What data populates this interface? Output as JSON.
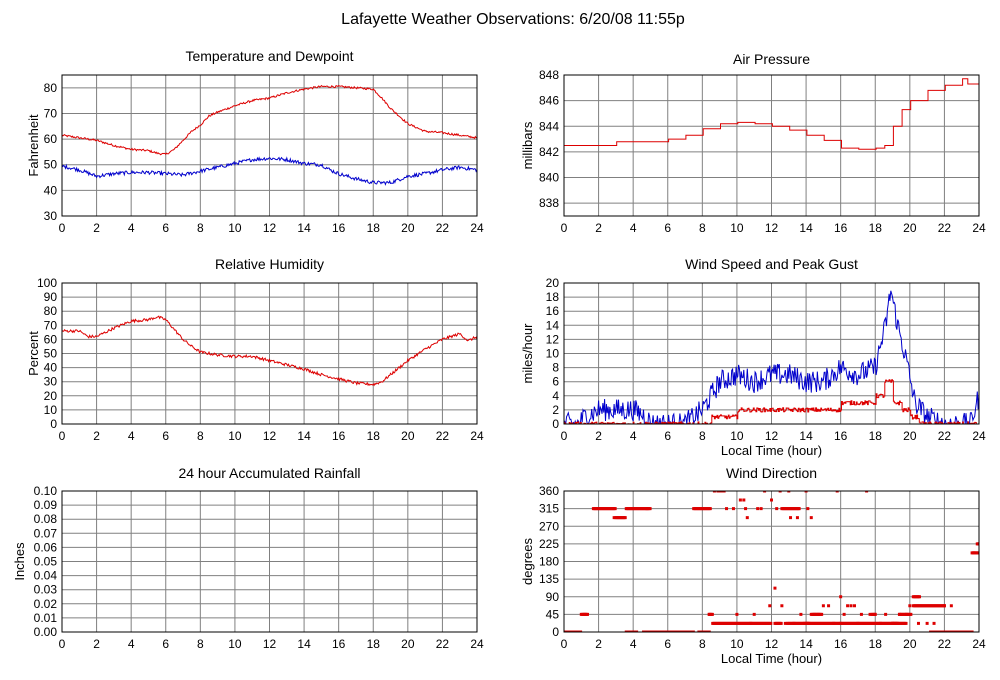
{
  "page": {
    "title": "Lafayette Weather Observations: 6/20/08 11:55p"
  },
  "colors": {
    "red": "#dd0000",
    "blue": "#0000cc",
    "grid": "#808080"
  },
  "chart_data": [
    {
      "id": "temp",
      "type": "line",
      "title": "Temperature and Dewpoint",
      "xlabel": "",
      "ylabel": "Fahrenheit",
      "xlim": [
        0,
        24
      ],
      "ylim": [
        30,
        85
      ],
      "xticks": [
        0,
        2,
        4,
        6,
        8,
        10,
        12,
        14,
        16,
        18,
        20,
        22,
        24
      ],
      "yticks": [
        30,
        40,
        50,
        60,
        70,
        80
      ],
      "grid": true,
      "series": [
        {
          "color": "red",
          "noise": 0.4,
          "x": [
            0,
            1,
            2,
            3,
            4,
            5,
            5.5,
            6,
            6.5,
            7,
            7.5,
            8,
            8.5,
            9,
            10,
            11,
            12,
            13,
            14,
            15,
            16,
            17,
            18,
            18.5,
            19,
            20,
            21,
            22,
            23,
            24
          ],
          "y": [
            61.5,
            60.5,
            59.5,
            57.5,
            56,
            55.5,
            54.5,
            54,
            56,
            59.5,
            63,
            65.5,
            69,
            70.5,
            73,
            75,
            76,
            78,
            79.5,
            80.5,
            80.5,
            80,
            79.5,
            76,
            72,
            66,
            63,
            62.5,
            61.5,
            60.5
          ]
        },
        {
          "color": "blue",
          "noise": 0.7,
          "x": [
            0,
            1,
            2,
            3,
            4,
            5,
            6,
            7,
            8,
            9,
            10,
            11,
            12,
            13,
            14,
            15,
            15.5,
            16,
            17,
            18,
            19,
            20,
            21,
            22,
            23,
            24
          ],
          "y": [
            49.5,
            48,
            45.5,
            46.5,
            47,
            47,
            46.5,
            46,
            47.5,
            49,
            50.5,
            52,
            52.5,
            52,
            50.5,
            50,
            48,
            46.5,
            44.5,
            43,
            43,
            45.5,
            46.5,
            48,
            49,
            48
          ]
        }
      ]
    },
    {
      "id": "pressure",
      "type": "line",
      "title": "Air Pressure",
      "xlabel": "",
      "ylabel": "millibars",
      "xlim": [
        0,
        24
      ],
      "ylim": [
        837,
        848
      ],
      "xticks": [
        0,
        2,
        4,
        6,
        8,
        10,
        12,
        14,
        16,
        18,
        20,
        22,
        24
      ],
      "yticks": [
        838,
        840,
        842,
        844,
        846,
        848
      ],
      "grid": true,
      "series": [
        {
          "color": "red",
          "noise": 0,
          "step": true,
          "x": [
            0,
            1,
            2,
            3,
            4,
            5,
            6,
            7,
            8,
            9,
            10,
            11,
            12,
            13,
            14,
            15,
            16,
            17,
            18,
            18.5,
            19,
            19.5,
            20,
            21,
            22,
            23,
            23.3,
            24
          ],
          "y": [
            842.5,
            842.5,
            842.5,
            842.8,
            842.8,
            842.8,
            843,
            843.3,
            843.8,
            844.2,
            844.3,
            844.2,
            844,
            843.7,
            843.3,
            842.9,
            842.3,
            842.2,
            842.3,
            842.5,
            844,
            845.3,
            846,
            846.8,
            847.2,
            847.7,
            847.3,
            847.3
          ]
        }
      ]
    },
    {
      "id": "humidity",
      "type": "line",
      "title": "Relative Humidity",
      "xlabel": "",
      "ylabel": "Percent",
      "xlim": [
        0,
        24
      ],
      "ylim": [
        0,
        100
      ],
      "xticks": [
        0,
        2,
        4,
        6,
        8,
        10,
        12,
        14,
        16,
        18,
        20,
        22,
        24
      ],
      "yticks": [
        0,
        10,
        20,
        30,
        40,
        50,
        60,
        70,
        80,
        90,
        100
      ],
      "grid": true,
      "series": [
        {
          "color": "red",
          "noise": 1,
          "x": [
            0,
            1,
            1.5,
            2,
            3,
            4,
            5,
            5.5,
            6,
            6.5,
            7,
            7.5,
            8,
            9,
            10,
            11,
            12,
            13,
            14,
            15,
            16,
            17,
            18,
            18.5,
            19,
            20,
            21,
            22,
            23,
            23.5,
            24
          ],
          "y": [
            66,
            66,
            62,
            62,
            68,
            73,
            74,
            76,
            74,
            67,
            60,
            55,
            51,
            49,
            48,
            48,
            45,
            42,
            39,
            35,
            32,
            29,
            28,
            30,
            35,
            45,
            53,
            60,
            64,
            59,
            62
          ]
        }
      ]
    },
    {
      "id": "wind-speed",
      "type": "line",
      "title": "Wind Speed and Peak Gust",
      "xlabel": "Local Time (hour)",
      "ylabel": "miles/hour",
      "xlim": [
        0,
        24
      ],
      "ylim": [
        0,
        20
      ],
      "xticks": [
        0,
        2,
        4,
        6,
        8,
        10,
        12,
        14,
        16,
        18,
        20,
        22,
        24
      ],
      "yticks": [
        0,
        2,
        4,
        6,
        8,
        10,
        12,
        14,
        16,
        18,
        20
      ],
      "grid": true,
      "series": [
        {
          "color": "blue",
          "noise": 1.6,
          "clamp": true,
          "x": [
            0,
            0.8,
            1.2,
            2,
            3,
            4,
            4.8,
            5,
            6,
            7,
            7.5,
            8,
            8.5,
            9,
            10,
            11,
            12,
            13,
            14,
            15,
            16,
            17,
            18,
            18.6,
            18.9,
            19.3,
            19.8,
            20.3,
            21,
            22,
            23,
            23.5,
            24
          ],
          "y": [
            0,
            0,
            1,
            2,
            2,
            2,
            1,
            0,
            0,
            0,
            1,
            2,
            4,
            6,
            7,
            6,
            7,
            7,
            6,
            6,
            8,
            7,
            8,
            14,
            19,
            14,
            9,
            3,
            1,
            0,
            0,
            0,
            4
          ]
        },
        {
          "color": "red",
          "noise": 0.3,
          "step": true,
          "x": [
            0,
            8,
            8.5,
            9,
            10,
            12,
            14,
            15,
            16,
            17,
            18,
            18.5,
            19,
            19.5,
            20,
            20.5,
            24
          ],
          "y": [
            0,
            0,
            1,
            1,
            2,
            2,
            2,
            2,
            3,
            3,
            4,
            6,
            3,
            2,
            1,
            0,
            0
          ]
        }
      ]
    },
    {
      "id": "rainfall",
      "type": "line",
      "title": "24 hour Accumulated Rainfall",
      "xlabel": "",
      "ylabel": "Inches",
      "xlim": [
        0,
        24
      ],
      "ylim": [
        0,
        0.1
      ],
      "xticks": [
        0,
        2,
        4,
        6,
        8,
        10,
        12,
        14,
        16,
        18,
        20,
        22,
        24
      ],
      "yticks": [
        "0.00",
        "0.01",
        "0.02",
        "0.03",
        "0.04",
        "0.05",
        "0.06",
        "0.07",
        "0.08",
        "0.09",
        "0.10"
      ],
      "grid": true,
      "series": [
        {
          "color": "red",
          "noise": 0,
          "x": [
            0,
            24
          ],
          "y": [
            0,
            0
          ]
        }
      ]
    },
    {
      "id": "wind-direction",
      "type": "scatter",
      "title": "Wind Direction",
      "xlabel": "Local Time (hour)",
      "ylabel": "degrees",
      "xlim": [
        0,
        24
      ],
      "ylim": [
        0,
        360
      ],
      "xticks": [
        0,
        2,
        4,
        6,
        8,
        10,
        12,
        14,
        16,
        18,
        20,
        22,
        24
      ],
      "yticks": [
        0,
        45,
        90,
        135,
        180,
        225,
        270,
        315,
        360
      ],
      "grid": true,
      "series": [
        {
          "color": "red",
          "segments": [
            [
              0,
              1.0,
              0
            ],
            [
              1.0,
              1.4,
              45
            ],
            [
              1.7,
              3.0,
              315
            ],
            [
              3.0,
              3.6,
              292
            ],
            [
              3.6,
              5.0,
              315
            ],
            [
              3.6,
              4.2,
              0
            ],
            [
              4.6,
              7.5,
              0
            ],
            [
              7.5,
              8.5,
              315
            ],
            [
              7.8,
              8.3,
              0
            ],
            [
              8.4,
              8.6,
              45
            ],
            [
              8.6,
              12.0,
              22
            ],
            [
              8.9,
              9.3,
              360
            ],
            [
              12.2,
              12.6,
              22
            ],
            [
              12.6,
              13.2,
              315
            ],
            [
              13.2,
              13.6,
              315
            ],
            [
              12.9,
              14.2,
              22
            ],
            [
              14.0,
              16.0,
              22
            ],
            [
              14.3,
              14.9,
              45
            ],
            [
              16.0,
              19.3,
              22
            ],
            [
              17.8,
              18.0,
              45
            ],
            [
              19.0,
              19.8,
              22
            ],
            [
              19.4,
              20.1,
              45
            ],
            [
              20.2,
              22.0,
              67
            ],
            [
              20.2,
              20.6,
              90
            ],
            [
              21.2,
              23.6,
              0
            ],
            [
              23.6,
              24.0,
              202
            ],
            [
              23.9,
              24.0,
              225
            ]
          ],
          "points": [
            [
              0.4,
              0
            ],
            [
              1.2,
              45
            ],
            [
              2.9,
              292
            ],
            [
              4.8,
              315
            ],
            [
              5.2,
              0
            ],
            [
              7.0,
              0
            ],
            [
              8.4,
              0
            ],
            [
              8.4,
              45
            ],
            [
              8.7,
              360
            ],
            [
              9.2,
              360
            ],
            [
              9.4,
              315
            ],
            [
              9.8,
              315
            ],
            [
              10.0,
              45
            ],
            [
              10.2,
              337
            ],
            [
              10.4,
              337
            ],
            [
              10.5,
              315
            ],
            [
              10.6,
              292
            ],
            [
              10.8,
              22
            ],
            [
              11.0,
              45
            ],
            [
              11.2,
              315
            ],
            [
              11.4,
              315
            ],
            [
              11.6,
              360
            ],
            [
              11.9,
              67
            ],
            [
              12.0,
              337
            ],
            [
              12.2,
              112
            ],
            [
              12.3,
              315
            ],
            [
              12.5,
              360
            ],
            [
              12.6,
              67
            ],
            [
              12.8,
              22
            ],
            [
              13.0,
              360
            ],
            [
              13.1,
              292
            ],
            [
              13.3,
              22
            ],
            [
              13.5,
              292
            ],
            [
              13.6,
              315
            ],
            [
              13.7,
              45
            ],
            [
              13.9,
              22
            ],
            [
              14.0,
              360
            ],
            [
              14.1,
              315
            ],
            [
              14.3,
              292
            ],
            [
              14.5,
              45
            ],
            [
              14.7,
              45
            ],
            [
              14.9,
              45
            ],
            [
              15.0,
              67
            ],
            [
              15.3,
              67
            ],
            [
              15.6,
              22
            ],
            [
              15.8,
              360
            ],
            [
              16.0,
              90
            ],
            [
              16.2,
              45
            ],
            [
              16.4,
              67
            ],
            [
              16.6,
              67
            ],
            [
              16.8,
              67
            ],
            [
              17.0,
              22
            ],
            [
              17.2,
              45
            ],
            [
              17.5,
              360
            ],
            [
              17.7,
              45
            ],
            [
              18.0,
              45
            ],
            [
              18.3,
              22
            ],
            [
              18.6,
              45
            ],
            [
              19.0,
              22
            ],
            [
              19.4,
              45
            ],
            [
              19.8,
              45
            ],
            [
              20.0,
              67
            ],
            [
              20.5,
              22
            ],
            [
              21.0,
              22
            ],
            [
              21.4,
              22
            ],
            [
              21.8,
              0
            ],
            [
              22.0,
              67
            ],
            [
              22.4,
              67
            ],
            [
              22.6,
              0
            ],
            [
              23.1,
              0
            ],
            [
              23.7,
              202
            ],
            [
              24.0,
              225
            ]
          ]
        }
      ]
    }
  ]
}
